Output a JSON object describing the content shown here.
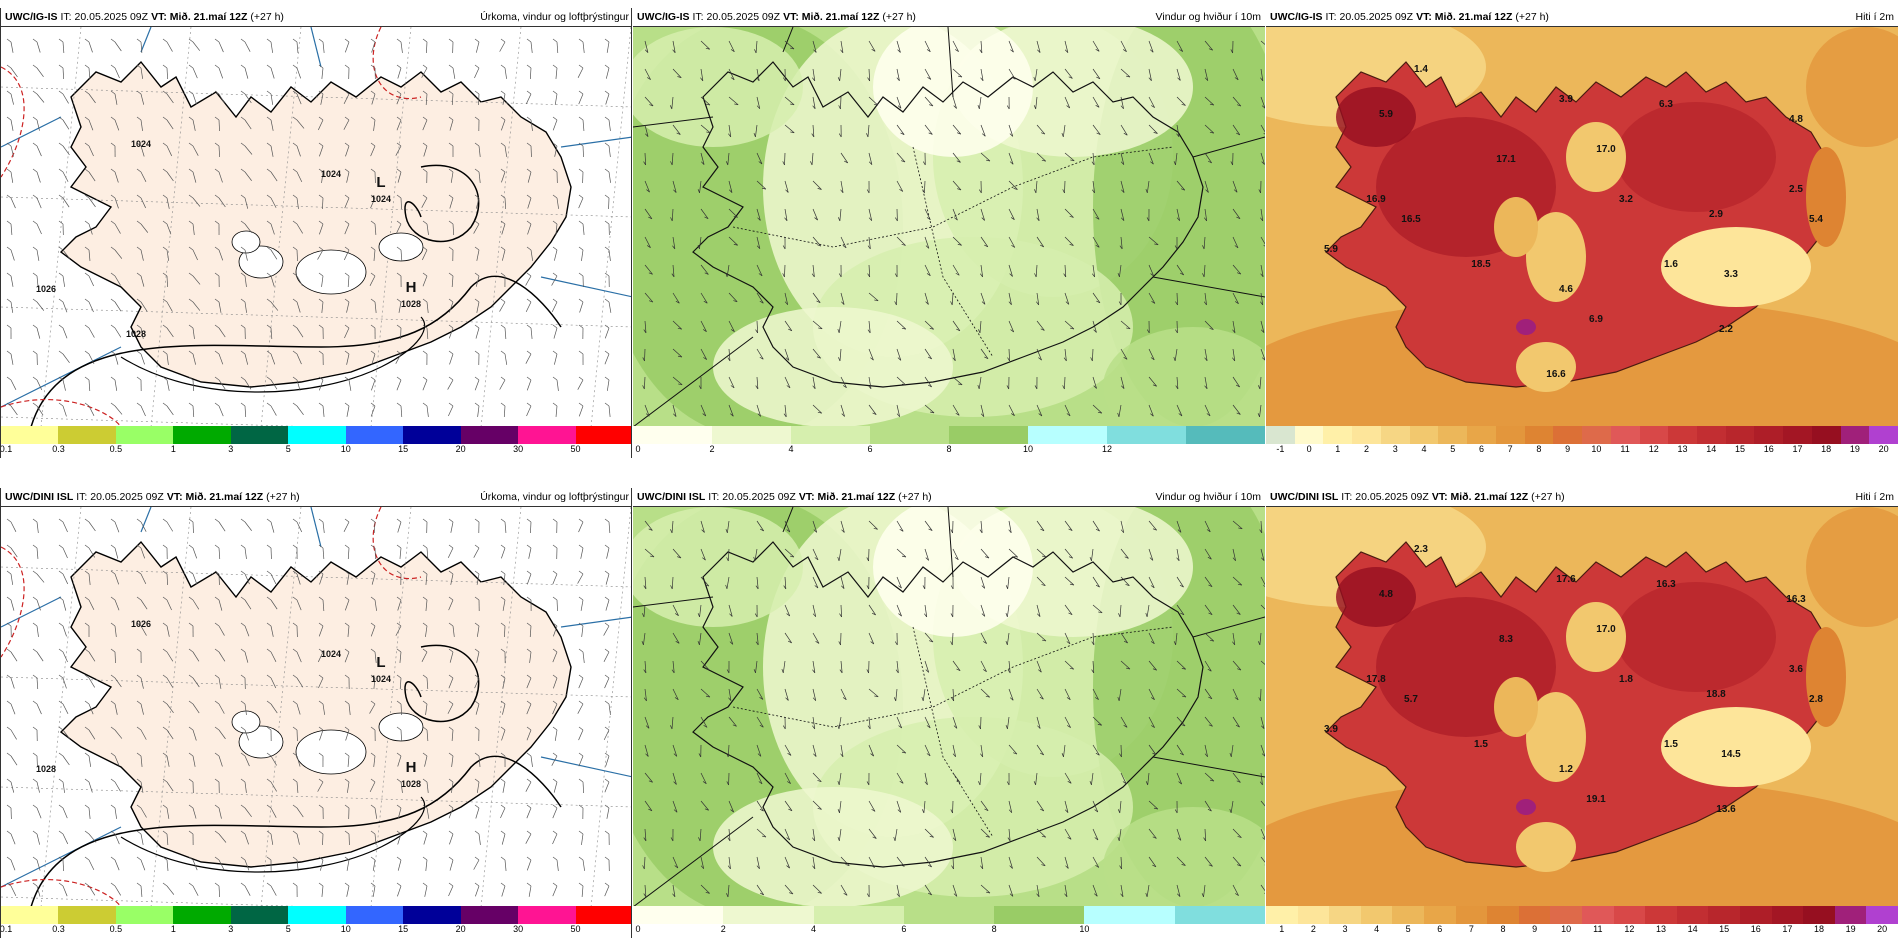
{
  "panels": [
    {
      "id": "p1",
      "model": "UWC/IG-IS",
      "it": "IT: 20.05.2025 09Z",
      "vt": "VT: Mið. 21.maí 12Z",
      "lead": "(+27 h)",
      "title": "Úrkoma, vindur og loftþrýstingur",
      "type": "precip",
      "pressure_labels": [
        "L",
        "1024",
        "H",
        "1028",
        "1024",
        "1024",
        "1026",
        "1028"
      ],
      "value_labels": [],
      "ticks": [
        "0.1",
        "0.3",
        "0.5",
        "1",
        "3",
        "5",
        "10",
        "15",
        "20",
        "30",
        "50"
      ],
      "colors": [
        "#ffff99",
        "#cccc33",
        "#99ff66",
        "#00aa00",
        "#006644",
        "#00ffff",
        "#3366ff",
        "#000099",
        "#660066",
        "#ff1493",
        "#ff0000"
      ]
    },
    {
      "id": "p2",
      "model": "UWC/IG-IS",
      "it": "IT: 20.05.2025 09Z",
      "vt": "VT: Mið. 21.maí 12Z",
      "lead": "(+27 h)",
      "title": "Vindur og hviður í 10m",
      "type": "wind",
      "pressure_labels": [],
      "value_labels": [],
      "ticks": [
        "0",
        "2",
        "4",
        "6",
        "8",
        "10",
        "12"
      ],
      "colors": [
        "#ffffee",
        "#eef8d0",
        "#d6efae",
        "#b8df88",
        "#99cc66",
        "#b7ffff",
        "#80dede",
        "#55bbbb"
      ]
    },
    {
      "id": "p3",
      "model": "UWC/IG-IS",
      "it": "IT: 20.05.2025 09Z",
      "vt": "VT: Mið. 21.maí 12Z",
      "lead": "(+27 h)",
      "title": "Hiti í 2m",
      "type": "temp",
      "pressure_labels": [],
      "value_labels": [
        "1.4",
        "3.9",
        "6.3",
        "4.8",
        "5.9",
        "17.0",
        "17.1",
        "16.9",
        "3.2",
        "2.5",
        "16.5",
        "2.9",
        "5.4",
        "5.9",
        "18.5",
        "1.6",
        "3.3",
        "4.6",
        "6.9",
        "2.2",
        "16.6"
      ],
      "ticks": [
        "-1",
        "0",
        "1",
        "2",
        "3",
        "4",
        "5",
        "6",
        "7",
        "8",
        "9",
        "10",
        "11",
        "12",
        "13",
        "14",
        "15",
        "16",
        "17",
        "18",
        "19",
        "20"
      ],
      "colors": [
        "#d9e6d0",
        "#fffacc",
        "#fff0a8",
        "#fde59a",
        "#f6d684",
        "#f2c86e",
        "#ecb75a",
        "#e8a648",
        "#e3963c",
        "#de8432",
        "#dc7036",
        "#de6a4a",
        "#e05858",
        "#d84848",
        "#cc3838",
        "#c22e32",
        "#b8262c",
        "#ae1e28",
        "#a31624",
        "#960f20",
        "#a0207a",
        "#b040d0"
      ]
    },
    {
      "id": "p4",
      "model": "UWC/DINI ISL",
      "it": "IT: 20.05.2025 09Z",
      "vt": "VT: Mið. 21.maí 12Z",
      "lead": "(+27 h)",
      "title": "Úrkoma, vindur og loftþrýstingur",
      "type": "precip",
      "pressure_labels": [
        "L",
        "1024",
        "H",
        "1028",
        "1024",
        "1026",
        "1028"
      ],
      "value_labels": [],
      "ticks": [
        "0.1",
        "0.3",
        "0.5",
        "1",
        "3",
        "5",
        "10",
        "15",
        "20",
        "30",
        "50"
      ],
      "colors": [
        "#ffff99",
        "#cccc33",
        "#99ff66",
        "#00aa00",
        "#006644",
        "#00ffff",
        "#3366ff",
        "#000099",
        "#660066",
        "#ff1493",
        "#ff0000"
      ]
    },
    {
      "id": "p5",
      "model": "UWC/DINI ISL",
      "it": "IT: 20.05.2025 09Z",
      "vt": "VT: Mið. 21.maí 12Z",
      "lead": "(+27 h)",
      "title": "Vindur og hviður í 10m",
      "type": "wind",
      "pressure_labels": [],
      "value_labels": [],
      "ticks": [
        "0",
        "2",
        "4",
        "6",
        "8",
        "10"
      ],
      "colors": [
        "#ffffee",
        "#eef8d0",
        "#d6efae",
        "#b8df88",
        "#99cc66",
        "#b7ffff",
        "#80dede"
      ]
    },
    {
      "id": "p6",
      "model": "UWC/DINI ISL",
      "it": "IT: 20.05.2025 09Z",
      "vt": "VT: Mið. 21.maí 12Z",
      "lead": "(+27 h)",
      "title": "Hiti í 2m",
      "type": "temp",
      "pressure_labels": [],
      "value_labels": [
        "2.3",
        "17.6",
        "16.3",
        "16.3",
        "4.8",
        "17.0",
        "8.3",
        "17.8",
        "1.8",
        "3.6",
        "5.7",
        "18.8",
        "2.8",
        "3.9",
        "1.5",
        "1.5",
        "14.5",
        "1.2",
        "19.1",
        "13.6"
      ],
      "ticks": [
        "1",
        "2",
        "3",
        "4",
        "5",
        "6",
        "7",
        "8",
        "9",
        "10",
        "11",
        "12",
        "13",
        "14",
        "15",
        "16",
        "17",
        "18",
        "19",
        "20"
      ],
      "colors": [
        "#fff0a8",
        "#fde59a",
        "#f6d684",
        "#f2c86e",
        "#ecb75a",
        "#e8a648",
        "#e3963c",
        "#de8432",
        "#dc7036",
        "#de6a4a",
        "#e05858",
        "#d84848",
        "#cc3838",
        "#c22e32",
        "#b8262c",
        "#ae1e28",
        "#a31624",
        "#960f20",
        "#a0207a",
        "#b040d0"
      ]
    }
  ]
}
